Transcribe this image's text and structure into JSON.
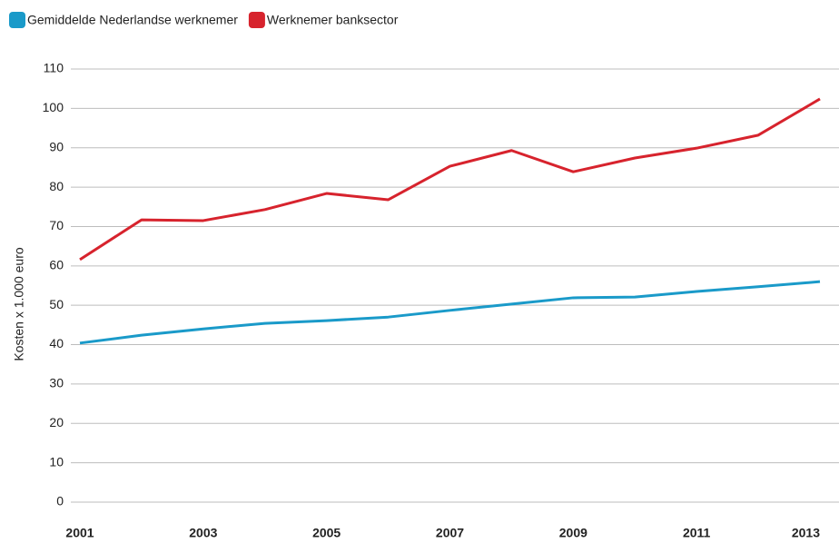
{
  "chart_data": {
    "type": "line",
    "ylabel": "Kosten x 1.000 euro",
    "x": [
      2001,
      2002,
      2003,
      2004,
      2005,
      2006,
      2007,
      2008,
      2009,
      2010,
      2011,
      2012,
      2013
    ],
    "xlim": [
      2001,
      2013
    ],
    "xticks": [
      2001,
      2003,
      2005,
      2007,
      2009,
      2011,
      2013
    ],
    "ylim": [
      0,
      110
    ],
    "yticks": [
      0,
      10,
      20,
      30,
      40,
      50,
      60,
      70,
      80,
      90,
      100,
      110
    ],
    "grid": true,
    "legend": "top-left",
    "series": [
      {
        "name": "Gemiddelde Nederlandse werknemer",
        "color": "#1a9ac9",
        "values": [
          40.4,
          42.4,
          44.0,
          45.4,
          46.1,
          47.0,
          48.7,
          50.3,
          51.9,
          52.1,
          53.5,
          54.7,
          56.0
        ]
      },
      {
        "name": "Werknemer banksector",
        "color": "#d7232d",
        "values": [
          61.6,
          71.7,
          71.5,
          74.3,
          78.4,
          76.8,
          85.3,
          89.3,
          83.9,
          87.4,
          89.9,
          93.2,
          102.4
        ]
      }
    ]
  }
}
